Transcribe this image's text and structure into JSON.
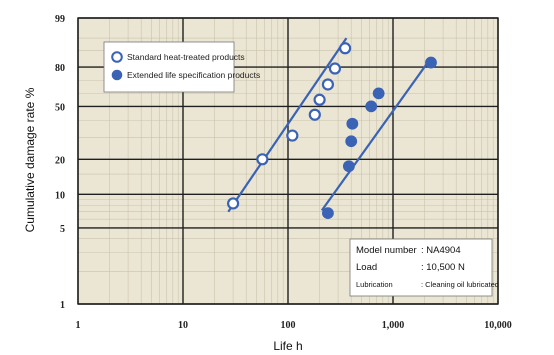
{
  "chart_data": {
    "type": "scatter",
    "title": "",
    "xlabel": "Life h",
    "ylabel": "Cumulative damage rate %",
    "x_scale": "log",
    "y_scale": "weibull",
    "xlim": [
      1,
      10000
    ],
    "ylim": [
      1,
      99
    ],
    "x_ticks": [
      {
        "value": 1,
        "label": "1"
      },
      {
        "value": 10,
        "label": "10"
      },
      {
        "value": 100,
        "label": "100"
      },
      {
        "value": 1000,
        "label": "1,000"
      },
      {
        "value": 10000,
        "label": "10,000"
      }
    ],
    "y_ticks": [
      {
        "value": 1,
        "label": "1"
      },
      {
        "value": 5,
        "label": "5"
      },
      {
        "value": 10,
        "label": "10"
      },
      {
        "value": 20,
        "label": "20"
      },
      {
        "value": 50,
        "label": "50"
      },
      {
        "value": 80,
        "label": "80"
      },
      {
        "value": 99,
        "label": "99"
      }
    ],
    "grid": true,
    "legend_position": "top-left",
    "series": [
      {
        "name": "Standard heat-treated products",
        "marker": "open-circle",
        "color": "#3a62b5",
        "points": [
          {
            "x": 30,
            "y": 8.3
          },
          {
            "x": 57,
            "y": 20
          },
          {
            "x": 110,
            "y": 31
          },
          {
            "x": 180,
            "y": 44
          },
          {
            "x": 200,
            "y": 55
          },
          {
            "x": 240,
            "y": 67
          },
          {
            "x": 280,
            "y": 79
          },
          {
            "x": 350,
            "y": 91
          }
        ],
        "fit_line": [
          {
            "x": 27,
            "y": 7
          },
          {
            "x": 360,
            "y": 95
          }
        ]
      },
      {
        "name": "Extended life specification products",
        "marker": "filled-circle",
        "color": "#3a62b5",
        "points": [
          {
            "x": 240,
            "y": 6.8
          },
          {
            "x": 380,
            "y": 17.5
          },
          {
            "x": 400,
            "y": 28
          },
          {
            "x": 410,
            "y": 38
          },
          {
            "x": 620,
            "y": 50
          },
          {
            "x": 730,
            "y": 60
          },
          {
            "x": 2300,
            "y": 83
          }
        ],
        "fit_line": [
          {
            "x": 210,
            "y": 7.2
          },
          {
            "x": 2250,
            "y": 85
          }
        ]
      }
    ],
    "info_box": {
      "rows": [
        {
          "label": "Model number",
          "value": ": NA4904"
        },
        {
          "label": "Load",
          "value": ": 10,500 N"
        },
        {
          "label": "Lubrication",
          "value": ": Cleaning oil lubricated"
        }
      ]
    }
  }
}
